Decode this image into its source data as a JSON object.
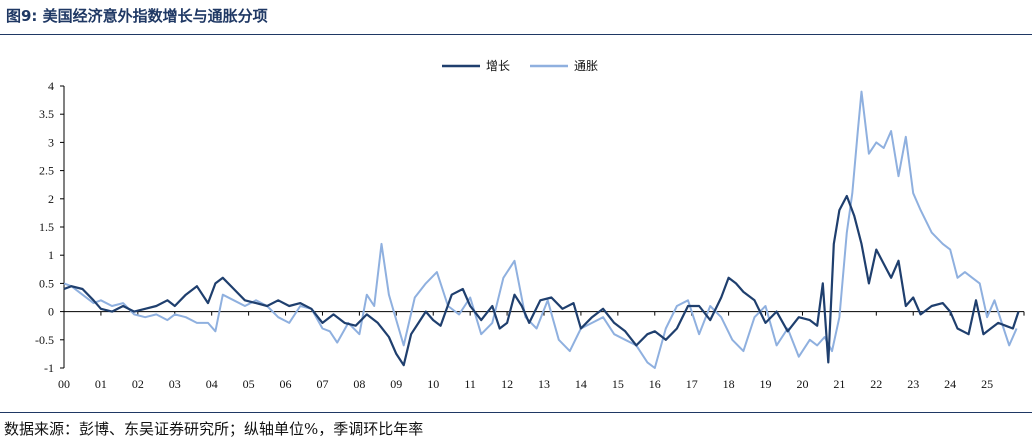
{
  "header": {
    "title": "图9:  美国经济意外指数增长与通胀分项"
  },
  "footer": {
    "source": "数据来源：彭博、东吴证券研究所；纵轴单位%，季调环比年率"
  },
  "colors": {
    "growth": "#1f3f6e",
    "inflation": "#8fb0df",
    "rule": "#1f3864"
  },
  "chart_data": {
    "type": "line",
    "title": "美国经济意外指数增长与通胀分项",
    "ylabel": "%",
    "xlabel": "",
    "ylim": [
      -1,
      4
    ],
    "yticks": [
      4,
      3.5,
      3,
      2.5,
      2,
      1.5,
      1,
      0.5,
      0,
      -0.5,
      -1
    ],
    "ytick_labels": [
      "4",
      "3.5",
      "3",
      "2.5",
      "2",
      "1.5",
      "1",
      "0.5",
      "0",
      "-0.5",
      "-1"
    ],
    "xlim": [
      2000,
      2026
    ],
    "xtick_labels": [
      "00",
      "01",
      "02",
      "03",
      "04",
      "05",
      "06",
      "07",
      "08",
      "09",
      "10",
      "11",
      "12",
      "13",
      "14",
      "15",
      "16",
      "17",
      "18",
      "19",
      "20",
      "21",
      "22",
      "23",
      "24",
      "25"
    ],
    "legend": {
      "position": "top-center",
      "entries": [
        "增长",
        "通胀"
      ]
    },
    "series": [
      {
        "name": "增长",
        "x": [
          2000,
          2000.2,
          2000.5,
          2000.8,
          2001,
          2001.3,
          2001.6,
          2001.9,
          2002.2,
          2002.5,
          2002.8,
          2003,
          2003.3,
          2003.6,
          2003.9,
          2004.1,
          2004.3,
          2004.6,
          2004.9,
          2005.2,
          2005.5,
          2005.8,
          2006.1,
          2006.4,
          2006.7,
          2007,
          2007.3,
          2007.6,
          2007.9,
          2008.2,
          2008.5,
          2008.8,
          2009,
          2009.2,
          2009.4,
          2009.6,
          2009.8,
          2010,
          2010.2,
          2010.5,
          2010.8,
          2011,
          2011.3,
          2011.6,
          2011.8,
          2012,
          2012.2,
          2012.4,
          2012.6,
          2012.9,
          2013.2,
          2013.5,
          2013.8,
          2014,
          2014.3,
          2014.6,
          2014.9,
          2015.2,
          2015.5,
          2015.8,
          2016,
          2016.3,
          2016.6,
          2016.9,
          2017.2,
          2017.5,
          2017.8,
          2018,
          2018.2,
          2018.4,
          2018.7,
          2019,
          2019.3,
          2019.6,
          2019.9,
          2020.2,
          2020.4,
          2020.55,
          2020.7,
          2020.85,
          2021,
          2021.2,
          2021.4,
          2021.6,
          2021.8,
          2022,
          2022.2,
          2022.4,
          2022.6,
          2022.8,
          2023,
          2023.2,
          2023.5,
          2023.8,
          2024,
          2024.2,
          2024.5,
          2024.7,
          2024.9,
          2025.1,
          2025.3,
          2025.5,
          2025.7,
          2025.85
        ],
        "y": [
          0.4,
          0.45,
          0.4,
          0.2,
          0.05,
          0,
          0.1,
          0,
          0.05,
          0.1,
          0.2,
          0.1,
          0.3,
          0.45,
          0.15,
          0.5,
          0.6,
          0.4,
          0.2,
          0.15,
          0.1,
          0.2,
          0.1,
          0.15,
          0.05,
          -0.2,
          -0.05,
          -0.2,
          -0.25,
          -0.05,
          -0.2,
          -0.45,
          -0.75,
          -0.95,
          -0.4,
          -0.2,
          0,
          -0.15,
          -0.25,
          0.3,
          0.4,
          0.1,
          -0.15,
          0.1,
          -0.3,
          -0.2,
          0.3,
          0.1,
          -0.2,
          0.2,
          0.25,
          0.05,
          0.15,
          -0.3,
          -0.1,
          0.05,
          -0.2,
          -0.35,
          -0.6,
          -0.4,
          -0.35,
          -0.5,
          -0.3,
          0.1,
          0.1,
          -0.15,
          0.25,
          0.6,
          0.5,
          0.35,
          0.2,
          -0.2,
          0,
          -0.35,
          -0.1,
          -0.15,
          -0.25,
          0.5,
          -0.9,
          1.2,
          1.8,
          2.05,
          1.7,
          1.2,
          0.5,
          1.1,
          0.85,
          0.6,
          0.9,
          0.1,
          0.25,
          -0.05,
          0.1,
          0.15,
          0,
          -0.3,
          -0.4,
          0.2,
          -0.4,
          -0.3,
          -0.2,
          -0.25,
          -0.3,
          0
        ]
      },
      {
        "name": "通胀",
        "x": [
          2000,
          2000.2,
          2000.5,
          2000.8,
          2001,
          2001.3,
          2001.6,
          2001.9,
          2002.2,
          2002.5,
          2002.8,
          2003,
          2003.3,
          2003.6,
          2003.9,
          2004.1,
          2004.3,
          2004.6,
          2004.9,
          2005.2,
          2005.5,
          2005.8,
          2006.1,
          2006.4,
          2006.7,
          2007,
          2007.2,
          2007.4,
          2007.7,
          2008,
          2008.2,
          2008.4,
          2008.6,
          2008.8,
          2009,
          2009.2,
          2009.5,
          2009.8,
          2010.1,
          2010.4,
          2010.7,
          2011,
          2011.3,
          2011.6,
          2011.9,
          2012.2,
          2012.5,
          2012.8,
          2013.1,
          2013.4,
          2013.7,
          2014,
          2014.3,
          2014.6,
          2014.9,
          2015.2,
          2015.5,
          2015.8,
          2016,
          2016.3,
          2016.6,
          2016.9,
          2017.2,
          2017.5,
          2017.8,
          2018.1,
          2018.4,
          2018.7,
          2019,
          2019.3,
          2019.6,
          2019.9,
          2020.2,
          2020.4,
          2020.6,
          2020.8,
          2021,
          2021.2,
          2021.35,
          2021.5,
          2021.6,
          2021.8,
          2022,
          2022.2,
          2022.4,
          2022.6,
          2022.8,
          2023,
          2023.2,
          2023.5,
          2023.8,
          2024,
          2024.2,
          2024.4,
          2024.6,
          2024.8,
          2025,
          2025.2,
          2025.4,
          2025.6,
          2025.8
        ],
        "y": [
          0.5,
          0.45,
          0.3,
          0.15,
          0.2,
          0.1,
          0.15,
          -0.05,
          -0.1,
          -0.05,
          -0.15,
          -0.05,
          -0.1,
          -0.2,
          -0.2,
          -0.35,
          0.3,
          0.2,
          0.1,
          0.2,
          0.1,
          -0.1,
          -0.2,
          0.1,
          0.05,
          -0.3,
          -0.35,
          -0.55,
          -0.2,
          -0.4,
          0.3,
          0.1,
          1.2,
          0.3,
          -0.15,
          -0.6,
          0.25,
          0.5,
          0.7,
          0.1,
          -0.05,
          0.25,
          -0.4,
          -0.2,
          0.6,
          0.9,
          -0.1,
          -0.3,
          0.2,
          -0.5,
          -0.7,
          -0.3,
          -0.2,
          -0.1,
          -0.4,
          -0.5,
          -0.6,
          -0.9,
          -1.0,
          -0.3,
          0.1,
          0.2,
          -0.4,
          0.1,
          -0.1,
          -0.5,
          -0.7,
          -0.1,
          0.1,
          -0.6,
          -0.3,
          -0.8,
          -0.5,
          -0.6,
          -0.45,
          -0.7,
          -0.1,
          1.4,
          2.1,
          3.2,
          3.9,
          2.8,
          3.0,
          2.9,
          3.2,
          2.4,
          3.1,
          2.1,
          1.8,
          1.4,
          1.2,
          1.1,
          0.6,
          0.7,
          0.6,
          0.5,
          -0.1,
          0.2,
          -0.2,
          -0.6,
          -0.3
        ]
      }
    ]
  }
}
